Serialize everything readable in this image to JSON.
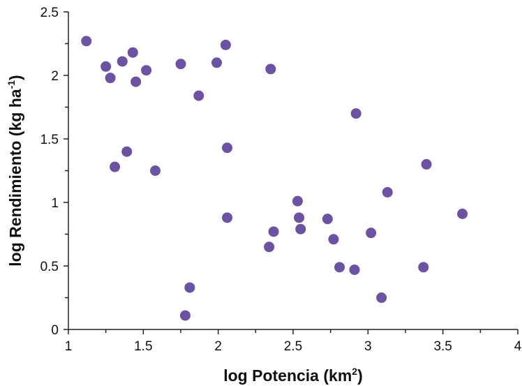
{
  "chart_data": {
    "type": "scatter",
    "xlabel": "log Potencia (km",
    "xlabel_sup": "2",
    "xlabel_suffix": ")",
    "ylabel": "log Rendimiento (kg ha",
    "ylabel_sup": "-1",
    "ylabel_suffix": ")",
    "xlim": [
      1,
      4
    ],
    "ylim": [
      0,
      2.5
    ],
    "x_ticks": [
      "1",
      "1.5",
      "2",
      "2.5",
      "3",
      "3.5",
      "4"
    ],
    "y_ticks": [
      "0",
      "0.5",
      "1",
      "1.5",
      "2",
      "2.5"
    ],
    "grid": false,
    "legend": "none",
    "marker_color": "#6b52a3",
    "points": [
      {
        "x": 1.12,
        "y": 2.27
      },
      {
        "x": 1.25,
        "y": 2.07
      },
      {
        "x": 1.28,
        "y": 1.98
      },
      {
        "x": 1.36,
        "y": 2.11
      },
      {
        "x": 1.43,
        "y": 2.18
      },
      {
        "x": 1.45,
        "y": 1.95
      },
      {
        "x": 1.52,
        "y": 2.04
      },
      {
        "x": 1.75,
        "y": 2.09
      },
      {
        "x": 1.87,
        "y": 1.84
      },
      {
        "x": 1.99,
        "y": 2.1
      },
      {
        "x": 2.05,
        "y": 2.24
      },
      {
        "x": 2.35,
        "y": 2.05
      },
      {
        "x": 2.92,
        "y": 1.7
      },
      {
        "x": 1.31,
        "y": 1.28
      },
      {
        "x": 1.39,
        "y": 1.4
      },
      {
        "x": 1.58,
        "y": 1.25
      },
      {
        "x": 2.06,
        "y": 1.43
      },
      {
        "x": 3.39,
        "y": 1.3
      },
      {
        "x": 3.13,
        "y": 1.08
      },
      {
        "x": 2.53,
        "y": 1.01
      },
      {
        "x": 2.54,
        "y": 0.88
      },
      {
        "x": 2.06,
        "y": 0.88
      },
      {
        "x": 2.73,
        "y": 0.87
      },
      {
        "x": 3.63,
        "y": 0.91
      },
      {
        "x": 2.37,
        "y": 0.77
      },
      {
        "x": 2.55,
        "y": 0.79
      },
      {
        "x": 3.02,
        "y": 0.76
      },
      {
        "x": 2.77,
        "y": 0.71
      },
      {
        "x": 2.34,
        "y": 0.65
      },
      {
        "x": 2.81,
        "y": 0.49
      },
      {
        "x": 2.91,
        "y": 0.47
      },
      {
        "x": 3.37,
        "y": 0.49
      },
      {
        "x": 3.09,
        "y": 0.25
      },
      {
        "x": 1.81,
        "y": 0.33
      },
      {
        "x": 1.78,
        "y": 0.11
      }
    ]
  }
}
